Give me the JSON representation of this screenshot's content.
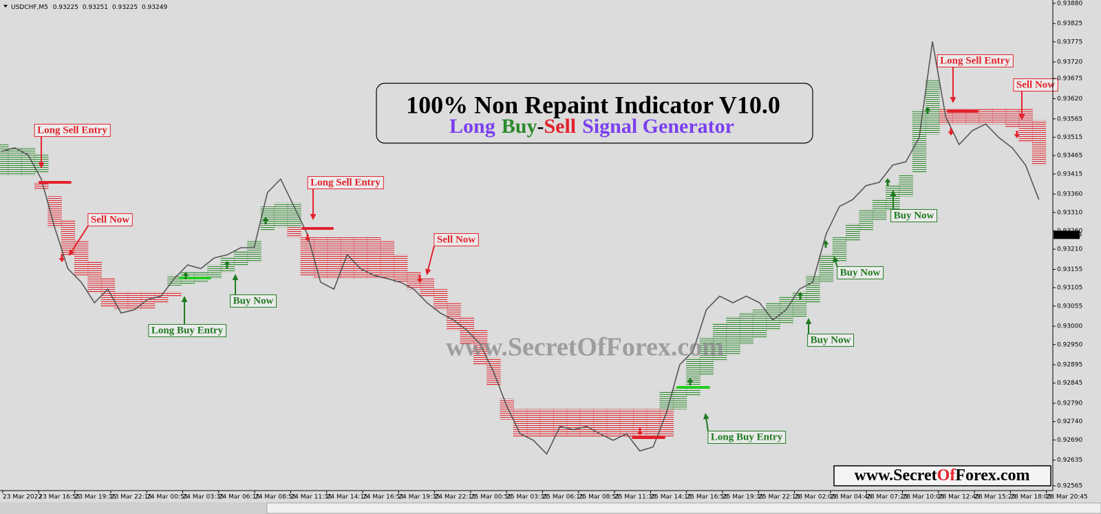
{
  "chart_data": {
    "type": "line",
    "header": {
      "symbol": "USDCHF,M5",
      "ohlc": [
        0.93225,
        0.93251,
        0.93225,
        0.93249
      ]
    },
    "title": "100% Non Repaint Indicator V10.0",
    "subtitle_parts": [
      {
        "text": "Long",
        "color": "#7a3ff0"
      },
      {
        "text": "Buy",
        "color": "#2a8a2a"
      },
      {
        "text": "-",
        "color": "#000000"
      },
      {
        "text": "Sell",
        "color": "#e3212b"
      },
      {
        "text": "Signal Generator",
        "color": "#7a3ff0"
      }
    ],
    "watermark": "www.SecretOfForex.com",
    "footer_parts": [
      {
        "text": "www.Secret",
        "color": "#000000"
      },
      {
        "text": "Of",
        "color": "#e3212b"
      },
      {
        "text": "Forex.com",
        "color": "#000000"
      }
    ],
    "ylim": [
      0.92552,
      0.93889
    ],
    "yticks": [
      {
        "value": 0.9388,
        "label": "0.93880"
      },
      0.93825,
      0.93775,
      {
        "value": 0.9372,
        "label": "0.93720"
      },
      0.93675,
      {
        "value": 0.9362,
        "label": "0.93620"
      },
      0.93565,
      0.93515,
      0.93465,
      0.93415,
      {
        "value": 0.9336,
        "label": "0.93360"
      },
      {
        "value": 0.9331,
        "label": "0.93310"
      },
      {
        "value": 0.9326,
        "label": "0.93260"
      },
      {
        "value": 0.9321,
        "label": "0.93210"
      },
      0.93155,
      0.93105,
      0.93055,
      {
        "value": 0.93,
        "label": "0.93000"
      },
      {
        "value": 0.9295,
        "label": "0.92950"
      },
      0.92895,
      0.92845,
      {
        "value": 0.9279,
        "label": "0.92790"
      },
      {
        "value": 0.9274,
        "label": "0.92740"
      },
      {
        "value": 0.9269,
        "label": "0.92690"
      },
      0.92635,
      0.92565
    ],
    "last_price": 0.93249,
    "xticks": [
      "23 Mar 2022",
      "23 Mar 16:55",
      "23 Mar 19:35",
      "23 Mar 22:15",
      "24 Mar 00:55",
      "24 Mar 03:35",
      "24 Mar 06:15",
      "24 Mar 08:55",
      "24 Mar 11:35",
      "24 Mar 14:15",
      "24 Mar 16:55",
      "24 Mar 19:35",
      "24 Mar 22:15",
      "25 Mar 00:55",
      "25 Mar 03:35",
      "25 Mar 06:15",
      "25 Mar 08:55",
      "25 Mar 11:35",
      "25 Mar 14:15",
      "25 Mar 16:55",
      "25 Mar 19:35",
      "25 Mar 22:15",
      "28 Mar 02:05",
      "28 Mar 04:45",
      "28 Mar 07:25",
      "28 Mar 10:05",
      "28 Mar 12:45",
      "28 Mar 15:25",
      "28 Mar 18:05",
      "28 Mar 20:45"
    ],
    "series": [
      {
        "color": "#555555",
        "values": [
          0.93476,
          0.93486,
          0.93467,
          0.93401,
          0.9327,
          0.93157,
          0.9312,
          0.93064,
          0.93101,
          0.93036,
          0.93045,
          0.93073,
          0.93082,
          0.9313,
          0.93167,
          0.93157,
          0.93186,
          0.93195,
          0.93214,
          0.93214,
          0.93364,
          0.93401,
          0.93326,
          0.93251,
          0.9312,
          0.93101,
          0.93195,
          0.93157,
          0.93139,
          0.9313,
          0.9312,
          0.93101,
          0.93064,
          0.93036,
          0.93017,
          0.92989,
          0.92951,
          0.92876,
          0.92782,
          0.92707,
          0.92689,
          0.92652,
          0.92727,
          0.92718,
          0.92727,
          0.92707,
          0.92689,
          0.92707,
          0.9266,
          0.92671,
          0.92764,
          0.92895,
          0.92932,
          0.93045,
          0.93082,
          0.93064,
          0.93082,
          0.93064,
          0.93017,
          0.93045,
          0.93101,
          0.9312,
          0.93251,
          0.93326,
          0.93345,
          0.93383,
          0.93392,
          0.93439,
          0.93448,
          0.93514,
          0.93776,
          0.9357,
          0.93495,
          0.93533,
          0.93551,
          0.93514,
          0.93486,
          0.93439,
          0.93345
        ]
      }
    ],
    "bands": [
      {
        "color": "#e3212b",
        "upper": [
          null,
          null,
          null,
          0.93392,
          0.93354,
          0.93289,
          0.93233,
          0.93176,
          0.9313,
          0.93093,
          0.93093,
          0.93093,
          0.93093,
          0.93093,
          null,
          null,
          null,
          null,
          null,
          null,
          null,
          null,
          0.9327,
          0.93242,
          0.93242,
          0.93242,
          0.93242,
          0.93242,
          0.93242,
          0.93233,
          0.93195,
          0.93148,
          0.9313,
          0.93101,
          0.93064,
          0.93026,
          0.92989,
          0.92914,
          0.92802,
          0.92774,
          0.92774,
          0.92774,
          0.92774,
          0.92774,
          0.92774,
          0.92774,
          0.92774,
          0.92774,
          0.92774,
          0.92774,
          0.92774,
          null,
          null,
          null,
          null,
          null,
          null,
          null,
          null,
          null,
          null,
          null,
          null,
          null,
          null,
          null,
          null,
          null,
          null,
          null,
          null,
          0.93593,
          0.93593,
          0.93593,
          0.93593,
          0.93593,
          0.93593,
          0.93593,
          0.93561
        ],
        "lower": [
          null,
          null,
          null,
          0.93373,
          0.9327,
          0.93195,
          0.93139,
          0.93093,
          0.93054,
          0.93045,
          0.93045,
          0.93049,
          0.93064,
          0.93082,
          null,
          null,
          null,
          null,
          null,
          null,
          null,
          null,
          0.93242,
          0.93139,
          0.9313,
          0.9313,
          0.9313,
          0.9313,
          0.9313,
          0.9313,
          0.9312,
          0.93101,
          0.93082,
          0.93045,
          0.92989,
          0.92951,
          0.92895,
          0.9284,
          0.92746,
          0.92699,
          0.92699,
          0.92699,
          0.92699,
          0.92699,
          0.92699,
          0.92699,
          0.92699,
          0.92699,
          0.92699,
          0.92699,
          0.92699,
          null,
          null,
          null,
          null,
          null,
          null,
          null,
          null,
          null,
          null,
          null,
          null,
          null,
          null,
          null,
          null,
          null,
          null,
          null,
          null,
          0.93551,
          0.93551,
          0.93551,
          0.93551,
          0.93551,
          0.93542,
          0.93504,
          0.93439
        ]
      },
      {
        "color": "#2a8a2a",
        "upper": [
          0.93495,
          0.93486,
          0.93486,
          0.93467,
          null,
          null,
          null,
          null,
          null,
          null,
          null,
          null,
          null,
          0.93139,
          0.93148,
          0.93148,
          0.93167,
          0.93186,
          0.93204,
          0.93233,
          0.93326,
          0.93336,
          0.93336,
          null,
          null,
          null,
          null,
          null,
          null,
          null,
          null,
          null,
          null,
          null,
          null,
          null,
          null,
          null,
          null,
          null,
          null,
          null,
          null,
          null,
          null,
          null,
          null,
          null,
          null,
          null,
          0.92821,
          0.9283,
          0.92914,
          0.9297,
          0.93007,
          0.93026,
          0.93036,
          0.93045,
          0.93064,
          0.93082,
          0.93093,
          0.93139,
          0.93195,
          0.93242,
          0.93279,
          0.93317,
          0.93345,
          0.93383,
          0.93411,
          0.93589,
          0.93673,
          null,
          null,
          null,
          null,
          null,
          null,
          null,
          null
        ],
        "lower": [
          0.93411,
          0.93411,
          0.93411,
          0.9342,
          null,
          null,
          null,
          null,
          null,
          null,
          null,
          null,
          null,
          0.93111,
          0.93116,
          0.9312,
          0.9313,
          0.93148,
          0.93167,
          0.93176,
          0.93261,
          0.9327,
          0.9327,
          null,
          null,
          null,
          null,
          null,
          null,
          null,
          null,
          null,
          null,
          null,
          null,
          null,
          null,
          null,
          null,
          null,
          null,
          null,
          null,
          null,
          null,
          null,
          null,
          null,
          null,
          null,
          0.92774,
          0.92774,
          0.92811,
          0.92868,
          0.92905,
          0.92923,
          0.92951,
          0.9297,
          0.92989,
          0.93007,
          0.93026,
          0.93064,
          0.9312,
          0.93176,
          0.93233,
          0.93261,
          0.93289,
          0.93317,
          0.93354,
          0.9342,
          0.93523,
          null,
          null,
          null,
          null,
          null,
          null,
          null,
          null
        ]
      }
    ],
    "annotations": [
      {
        "text": "Long Sell Entry",
        "color": "#e3212b"
      },
      {
        "text": "Sell Now",
        "color": "#e3212b"
      },
      {
        "text": "Long Buy Entry",
        "color": "#1f7a1f"
      },
      {
        "text": "Buy Now",
        "color": "#1f7a1f"
      },
      {
        "text": "Long Sell Entry",
        "color": "#e3212b"
      },
      {
        "text": "Sell Now",
        "color": "#e3212b"
      },
      {
        "text": "Long Buy Entry",
        "color": "#1f7a1f"
      },
      {
        "text": "Buy Now",
        "color": "#1f7a1f"
      },
      {
        "text": "Buy Now",
        "color": "#1f7a1f"
      },
      {
        "text": "Buy Now",
        "color": "#1f7a1f"
      },
      {
        "text": "Long Sell Entry",
        "color": "#e3212b"
      },
      {
        "text": "Sell Now",
        "color": "#e3212b"
      }
    ]
  }
}
